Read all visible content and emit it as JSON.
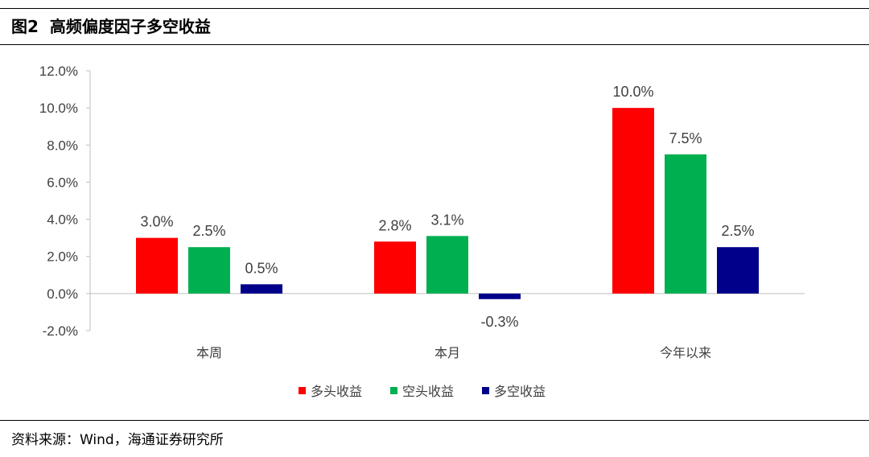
{
  "header": {
    "figure_number": "图2",
    "title": "高频偏度因子多空收益"
  },
  "footer": {
    "source": "资料来源：Wind，海通证券研究所"
  },
  "colors": {
    "long": "#ff0000",
    "short": "#00b050",
    "longshort": "#00008b"
  },
  "chart_data": {
    "type": "bar",
    "categories": [
      "本周",
      "本月",
      "今年以来"
    ],
    "series": [
      {
        "name": "多头收益",
        "values": [
          3.0,
          2.8,
          10.0
        ],
        "labels": [
          "3.0%",
          "2.8%",
          "10.0%"
        ],
        "color": "#ff0000"
      },
      {
        "name": "空头收益",
        "values": [
          2.5,
          3.1,
          7.5
        ],
        "labels": [
          "2.5%",
          "3.1%",
          "7.5%"
        ],
        "color": "#00b050"
      },
      {
        "name": "多空收益",
        "values": [
          0.5,
          -0.3,
          2.5
        ],
        "labels": [
          "0.5%",
          "-0.3%",
          "2.5%"
        ],
        "color": "#00008b"
      }
    ],
    "ylim": [
      -2.0,
      12.0
    ],
    "yticks": [
      12.0,
      10.0,
      8.0,
      6.0,
      4.0,
      2.0,
      0.0,
      -2.0
    ],
    "ytick_labels": [
      "12.0%",
      "10.0%",
      "8.0%",
      "6.0%",
      "4.0%",
      "2.0%",
      "0.0%",
      "-2.0%"
    ],
    "grid": false,
    "legend_position": "bottom"
  }
}
